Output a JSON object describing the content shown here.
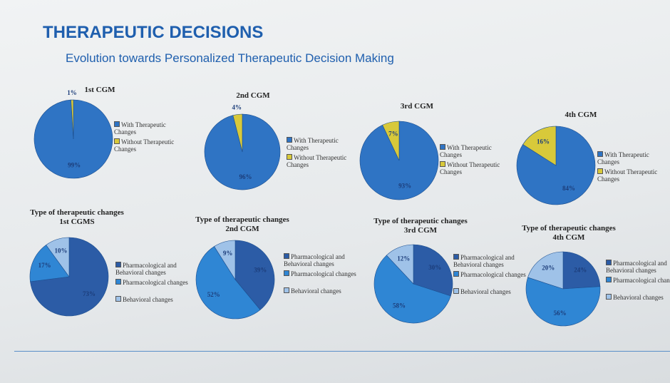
{
  "slide": {
    "title": "THERAPEUTIC DECISIONS",
    "subtitle": "Evolution towards Personalized Therapeutic Decision Making"
  },
  "chart_data": [
    {
      "type": "pie",
      "title": "1st CGM",
      "categories": [
        "With Therapeutic Changes",
        "Without Therapeutic Changes"
      ],
      "values": [
        99,
        1
      ],
      "value_labels": [
        "99%",
        "1%"
      ],
      "colors": [
        "#2f74c4",
        "#d8c93a"
      ]
    },
    {
      "type": "pie",
      "title": "2nd CGM",
      "categories": [
        "With Therapeutic Changes",
        "Without Therapeutic Changes"
      ],
      "values": [
        96,
        4
      ],
      "value_labels": [
        "96%",
        "4%"
      ],
      "colors": [
        "#2f74c4",
        "#d8c93a"
      ]
    },
    {
      "type": "pie",
      "title": "3rd CGM",
      "categories": [
        "With Therapeutic Changes",
        "Without Therapeutic Changes"
      ],
      "values": [
        93,
        7
      ],
      "value_labels": [
        "93%",
        "7%"
      ],
      "colors": [
        "#2f74c4",
        "#d8c93a"
      ]
    },
    {
      "type": "pie",
      "title": "4th CGM",
      "categories": [
        "With Therapeutic Changes",
        "Without Therapeutic Changes"
      ],
      "values": [
        84,
        16
      ],
      "value_labels": [
        "84%",
        "16%"
      ],
      "colors": [
        "#2f74c4",
        "#d8c93a"
      ]
    },
    {
      "type": "pie",
      "title": "Type of therapeutic changes",
      "subtitle": "1st CGMS",
      "categories": [
        "Pharmacological and Behavioral changes",
        "Pharmacological changes",
        "Behavioral changes"
      ],
      "values": [
        73,
        17,
        10
      ],
      "value_labels": [
        "73%",
        "17%",
        "10%"
      ],
      "colors": [
        "#2c5ca6",
        "#2f86d4",
        "#9fc2e8"
      ]
    },
    {
      "type": "pie",
      "title": "Type of therapeutic changes",
      "subtitle": "2nd CGM",
      "categories": [
        "Pharmacological and Behavioral changes",
        "Pharmacological changes",
        "Behavioral changes"
      ],
      "values": [
        39,
        52,
        9
      ],
      "value_labels": [
        "39%",
        "52%",
        "9%"
      ],
      "colors": [
        "#2c5ca6",
        "#2f86d4",
        "#9fc2e8"
      ]
    },
    {
      "type": "pie",
      "title": "Type of therapeutic changes",
      "subtitle": "3rd CGM",
      "categories": [
        "Pharmacological and Behavioral changes",
        "Pharmacological changes",
        "Behavioral changes"
      ],
      "values": [
        30,
        58,
        12
      ],
      "value_labels": [
        "30%",
        "58%",
        "12%"
      ],
      "colors": [
        "#2c5ca6",
        "#2f86d4",
        "#9fc2e8"
      ]
    },
    {
      "type": "pie",
      "title": "Type of therapeutic changes",
      "subtitle": "4th CGM",
      "categories": [
        "Pharmacological and Behavioral changes",
        "Pharmacological changes",
        "Behavioral changes"
      ],
      "values": [
        24,
        56,
        20
      ],
      "value_labels": [
        "24%",
        "56%",
        "20%"
      ],
      "colors": [
        "#2c5ca6",
        "#2f86d4",
        "#9fc2e8"
      ]
    }
  ]
}
